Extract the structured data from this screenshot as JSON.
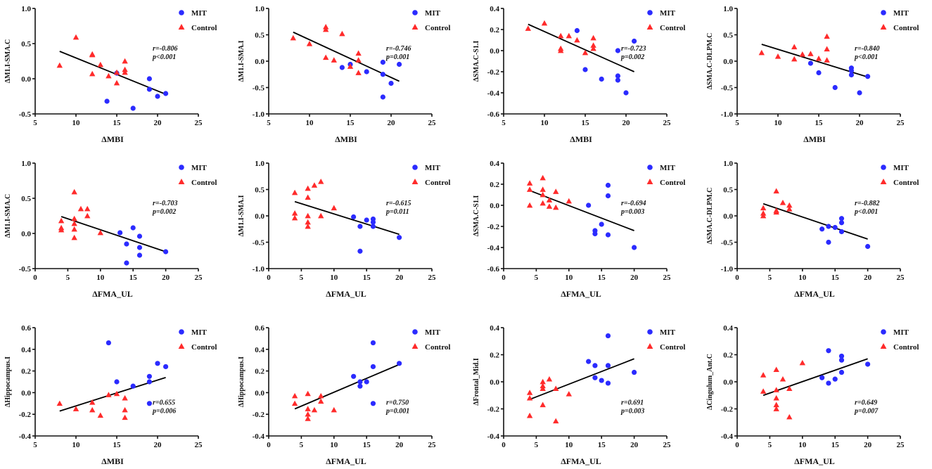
{
  "colors": {
    "MIT": "#2b2bff",
    "Control": "#ff2b2b",
    "axis": "#111111",
    "fit": "#000000"
  },
  "legend": [
    "MIT",
    "Control"
  ],
  "chart_data": [
    {
      "type": "scatter",
      "title": "",
      "xlabel": "ΔMBI",
      "ylabel": "ΔM1.I-SMA.C",
      "xlim": [
        5,
        25
      ],
      "xticks": [
        5,
        10,
        15,
        20,
        25
      ],
      "ylim": [
        -0.5,
        1.0
      ],
      "yticks": [
        -0.5,
        0.0,
        0.5,
        1.0
      ],
      "ytick_labels": [
        "-0.5",
        "0.0",
        "0.5",
        "1.0"
      ],
      "stats": {
        "r": "r=-0.806",
        "p": "p<0.001"
      },
      "fit_line": [
        [
          8,
          0.39
        ],
        [
          21,
          -0.22
        ]
      ],
      "series": [
        {
          "name": "MIT",
          "marker": "circle",
          "x": [
            13.8,
            15,
            17,
            19,
            19,
            20,
            21
          ],
          "y": [
            -0.32,
            0.08,
            -0.42,
            0.0,
            -0.15,
            -0.25,
            -0.21
          ]
        },
        {
          "name": "Control",
          "marker": "triangle",
          "x": [
            8,
            10,
            12,
            12,
            12,
            13,
            14,
            15,
            15,
            16,
            16,
            16
          ],
          "y": [
            0.19,
            0.59,
            0.35,
            0.34,
            0.07,
            0.2,
            0.04,
            0.09,
            -0.06,
            0.25,
            0.13,
            0.09
          ]
        }
      ]
    },
    {
      "type": "scatter",
      "title": "",
      "xlabel": "ΔMBI",
      "ylabel": "ΔM1.I-SMA.I",
      "xlim": [
        5,
        25
      ],
      "xticks": [
        5,
        10,
        15,
        20,
        25
      ],
      "ylim": [
        -1.0,
        1.0
      ],
      "yticks": [
        -1.0,
        -0.5,
        0.0,
        0.5,
        1.0
      ],
      "ytick_labels": [
        "-1.0",
        "-0.5",
        "0.0",
        "0.5",
        "1.0"
      ],
      "stats": {
        "r": "r=-0.746",
        "p": "p=0.001"
      },
      "fit_line": [
        [
          8,
          0.55
        ],
        [
          21,
          -0.38
        ]
      ],
      "series": [
        {
          "name": "MIT",
          "marker": "circle",
          "x": [
            14,
            15,
            17,
            19,
            19,
            19,
            20,
            21
          ],
          "y": [
            -0.12,
            -0.06,
            -0.2,
            -0.02,
            -0.25,
            -0.68,
            -0.42,
            -0.06
          ]
        },
        {
          "name": "Control",
          "marker": "triangle",
          "x": [
            8,
            10,
            12,
            12,
            12,
            13,
            14,
            15,
            16,
            16,
            16
          ],
          "y": [
            0.44,
            0.33,
            0.65,
            0.6,
            0.07,
            0.02,
            0.52,
            -0.1,
            0.15,
            0.02,
            -0.22
          ]
        }
      ]
    },
    {
      "type": "scatter",
      "title": "",
      "xlabel": "ΔMBI",
      "ylabel": "ΔSMA.C-S1.I",
      "xlim": [
        5,
        25
      ],
      "xticks": [
        5,
        10,
        15,
        20,
        25
      ],
      "ylim": [
        -0.6,
        0.4
      ],
      "yticks": [
        -0.6,
        -0.4,
        -0.2,
        0.0,
        0.2,
        0.4
      ],
      "ytick_labels": [
        "-0.6",
        "-0.4",
        "-0.2",
        "0.0",
        "0.2",
        "0.4"
      ],
      "stats": {
        "r": "r=-0.723",
        "p": "p=0.002"
      },
      "fit_line": [
        [
          8,
          0.25
        ],
        [
          21,
          -0.2
        ]
      ],
      "series": [
        {
          "name": "MIT",
          "marker": "circle",
          "x": [
            14,
            15,
            17,
            19,
            19,
            19,
            20,
            21
          ],
          "y": [
            0.19,
            -0.18,
            -0.27,
            0.0,
            -0.24,
            -0.28,
            -0.4,
            0.09
          ]
        },
        {
          "name": "Control",
          "marker": "triangle",
          "x": [
            8,
            10,
            12,
            12,
            12,
            13,
            14,
            15,
            16,
            16,
            16
          ],
          "y": [
            0.21,
            0.26,
            0.14,
            0.02,
            0.0,
            0.14,
            0.1,
            -0.02,
            0.12,
            0.05,
            0.02
          ]
        }
      ]
    },
    {
      "type": "scatter",
      "title": "",
      "xlabel": "ΔMBI",
      "ylabel": "ΔSMA.C-DLPM.C",
      "xlim": [
        5,
        25
      ],
      "xticks": [
        5,
        10,
        15,
        20,
        25
      ],
      "ylim": [
        -1.0,
        1.0
      ],
      "yticks": [
        -1.0,
        -0.5,
        0.0,
        0.5,
        1.0
      ],
      "ytick_labels": [
        "-1.0",
        "-0.5",
        "0.0",
        "0.5",
        "1.0"
      ],
      "stats": {
        "r": "r=-0.840",
        "p": "p<0.001"
      },
      "fit_line": [
        [
          8,
          0.32
        ],
        [
          21,
          -0.3
        ]
      ],
      "series": [
        {
          "name": "MIT",
          "marker": "circle",
          "x": [
            14,
            15,
            17,
            19,
            19,
            19,
            20,
            21
          ],
          "y": [
            -0.04,
            -0.22,
            -0.5,
            -0.13,
            -0.18,
            -0.26,
            -0.6,
            -0.29
          ]
        },
        {
          "name": "Control",
          "marker": "triangle",
          "x": [
            8,
            10,
            12,
            12,
            13,
            14,
            15,
            16,
            16,
            16
          ],
          "y": [
            0.16,
            0.09,
            0.27,
            0.04,
            0.13,
            0.14,
            0.05,
            0.47,
            0.23,
            0.02
          ]
        }
      ]
    },
    {
      "type": "scatter",
      "title": "",
      "xlabel": "ΔFMA_UL",
      "ylabel": "ΔM1.I-SMA.C",
      "xlim": [
        0,
        25
      ],
      "xticks": [
        0,
        5,
        10,
        15,
        20,
        25
      ],
      "ylim": [
        -0.5,
        1.0
      ],
      "yticks": [
        -0.5,
        0.0,
        0.5,
        1.0
      ],
      "ytick_labels": [
        "-0.5",
        "0.0",
        "0.5",
        "1.0"
      ],
      "stats": {
        "r": "r=-0.703",
        "p": "p=0.002"
      },
      "fit_line": [
        [
          4,
          0.24
        ],
        [
          20,
          -0.26
        ]
      ],
      "series": [
        {
          "name": "MIT",
          "marker": "circle",
          "x": [
            13,
            14,
            14,
            15,
            16,
            16,
            16,
            20
          ],
          "y": [
            0.01,
            -0.15,
            -0.42,
            0.08,
            -0.04,
            -0.2,
            -0.31,
            -0.26
          ]
        },
        {
          "name": "Control",
          "marker": "triangle",
          "x": [
            4,
            4,
            4,
            6,
            6,
            6,
            6,
            6,
            7,
            8,
            8,
            10
          ],
          "y": [
            0.18,
            0.08,
            0.05,
            0.59,
            0.21,
            0.14,
            0.06,
            -0.06,
            0.35,
            0.35,
            0.25,
            0.01
          ]
        }
      ]
    },
    {
      "type": "scatter",
      "title": "",
      "xlabel": "ΔFMA_UL",
      "ylabel": "ΔM1.I-SMA.I",
      "xlim": [
        0,
        25
      ],
      "xticks": [
        0,
        5,
        10,
        15,
        20,
        25
      ],
      "ylim": [
        -1.0,
        1.0
      ],
      "yticks": [
        -1.0,
        -0.5,
        0.0,
        0.5,
        1.0
      ],
      "ytick_labels": [
        "-1.0",
        "-0.5",
        "0.0",
        "0.5",
        "1.0"
      ],
      "stats": {
        "r": "r=-0.615",
        "p": "p=0.011"
      },
      "fit_line": [
        [
          4,
          0.27
        ],
        [
          20,
          -0.35
        ]
      ],
      "series": [
        {
          "name": "MIT",
          "marker": "circle",
          "x": [
            13,
            14,
            14,
            15,
            16,
            16,
            16,
            20
          ],
          "y": [
            -0.02,
            -0.2,
            -0.67,
            -0.08,
            -0.06,
            -0.12,
            -0.2,
            -0.41
          ]
        },
        {
          "name": "Control",
          "marker": "triangle",
          "x": [
            4,
            4,
            4,
            6,
            6,
            6,
            6,
            6,
            7,
            8,
            8,
            10
          ],
          "y": [
            0.44,
            0.05,
            -0.04,
            0.52,
            0.35,
            0.0,
            -0.12,
            -0.2,
            0.58,
            0.65,
            0.0,
            0.15
          ]
        }
      ]
    },
    {
      "type": "scatter",
      "title": "",
      "xlabel": "ΔFMA_UL",
      "ylabel": "ΔSMA.C-S1.I",
      "xlim": [
        0,
        25
      ],
      "xticks": [
        0,
        5,
        10,
        15,
        20,
        25
      ],
      "ylim": [
        -0.6,
        0.4
      ],
      "yticks": [
        -0.6,
        -0.4,
        -0.2,
        0.0,
        0.2,
        0.4
      ],
      "ytick_labels": [
        "-0.6",
        "-0.4",
        "-0.2",
        "0.0",
        "0.2",
        "0.4"
      ],
      "stats": {
        "r": "r=-0.694",
        "p": "p=0.003"
      },
      "fit_line": [
        [
          4,
          0.14
        ],
        [
          20,
          -0.24
        ]
      ],
      "series": [
        {
          "name": "MIT",
          "marker": "circle",
          "x": [
            13,
            14,
            14,
            15,
            16,
            16,
            16,
            20
          ],
          "y": [
            0.0,
            -0.24,
            -0.27,
            -0.18,
            0.19,
            0.09,
            -0.28,
            -0.4
          ]
        },
        {
          "name": "Control",
          "marker": "triangle",
          "x": [
            4,
            4,
            4,
            6,
            6,
            6,
            6,
            7,
            7,
            8,
            8,
            10
          ],
          "y": [
            0.21,
            0.15,
            0.0,
            0.26,
            0.15,
            0.1,
            0.02,
            0.05,
            -0.01,
            0.13,
            -0.02,
            0.04
          ]
        }
      ]
    },
    {
      "type": "scatter",
      "title": "",
      "xlabel": "ΔFMA_UL",
      "ylabel": "ΔSMA.C-DLPM.C",
      "xlim": [
        0,
        25
      ],
      "xticks": [
        0,
        5,
        10,
        15,
        20,
        25
      ],
      "ylim": [
        -1.0,
        1.0
      ],
      "yticks": [
        -1.0,
        -0.5,
        0.0,
        0.5,
        1.0
      ],
      "ytick_labels": [
        "-1.0",
        "-0.5",
        "0.0",
        "0.5",
        "1.0"
      ],
      "stats": {
        "r": "r=-0.882",
        "p": "p<0.001"
      },
      "fit_line": [
        [
          4,
          0.23
        ],
        [
          20,
          -0.44
        ]
      ],
      "series": [
        {
          "name": "MIT",
          "marker": "circle",
          "x": [
            13,
            14,
            14,
            15,
            16,
            16,
            16,
            20
          ],
          "y": [
            -0.25,
            -0.2,
            -0.5,
            -0.22,
            -0.05,
            -0.13,
            -0.3,
            -0.58
          ]
        },
        {
          "name": "Control",
          "marker": "triangle",
          "x": [
            4,
            4,
            4,
            6,
            6,
            6,
            7,
            8,
            8
          ],
          "y": [
            0.15,
            0.05,
            0.0,
            0.47,
            0.1,
            0.07,
            0.25,
            0.2,
            0.13
          ]
        }
      ]
    },
    {
      "type": "scatter",
      "title": "",
      "xlabel": "ΔMBI",
      "ylabel": "ΔHippocampus.I",
      "xlim": [
        5,
        25
      ],
      "xticks": [
        5,
        10,
        15,
        20,
        25
      ],
      "ylim": [
        -0.4,
        0.6
      ],
      "yticks": [
        -0.4,
        -0.2,
        0.0,
        0.2,
        0.4,
        0.6
      ],
      "ytick_labels": [
        "-0.4",
        "-0.2",
        "0.0",
        "0.2",
        "0.4",
        "0.6"
      ],
      "stats": {
        "r": "r=0.655",
        "p": "p=0.006"
      },
      "fit_line": [
        [
          8,
          -0.17
        ],
        [
          21,
          0.14
        ]
      ],
      "series": [
        {
          "name": "MIT",
          "marker": "circle",
          "x": [
            14,
            15,
            17,
            19,
            19,
            19,
            20,
            21
          ],
          "y": [
            0.46,
            0.1,
            0.06,
            0.15,
            0.1,
            -0.1,
            0.27,
            0.24
          ]
        },
        {
          "name": "Control",
          "marker": "triangle",
          "x": [
            8,
            10,
            12,
            12,
            13,
            14,
            15,
            16,
            16,
            16
          ],
          "y": [
            -0.1,
            -0.15,
            -0.09,
            -0.16,
            -0.21,
            -0.02,
            -0.01,
            -0.05,
            -0.16,
            -0.23
          ]
        }
      ]
    },
    {
      "type": "scatter",
      "title": "",
      "xlabel": "ΔFMA_UL",
      "ylabel": "ΔHippocampus.I",
      "xlim": [
        0,
        25
      ],
      "xticks": [
        0,
        5,
        10,
        15,
        20,
        25
      ],
      "ylim": [
        -0.4,
        0.6
      ],
      "yticks": [
        -0.4,
        -0.2,
        0.0,
        0.2,
        0.4,
        0.6
      ],
      "ytick_labels": [
        "-0.4",
        "-0.2",
        "0.0",
        "0.2",
        "0.4",
        "0.6"
      ],
      "stats": {
        "r": "r=0.750",
        "p": "p=0.001"
      },
      "fit_line": [
        [
          4,
          -0.15
        ],
        [
          20,
          0.26
        ]
      ],
      "series": [
        {
          "name": "MIT",
          "marker": "circle",
          "x": [
            13,
            14,
            14,
            15,
            16,
            16,
            16,
            20
          ],
          "y": [
            0.15,
            0.1,
            0.06,
            0.1,
            0.46,
            0.24,
            -0.1,
            0.27
          ]
        },
        {
          "name": "Control",
          "marker": "triangle",
          "x": [
            4,
            4,
            6,
            6,
            6,
            6,
            7,
            8,
            8,
            10
          ],
          "y": [
            -0.03,
            -0.1,
            -0.01,
            -0.2,
            -0.24,
            -0.15,
            -0.16,
            -0.03,
            -0.08,
            -0.16
          ]
        }
      ]
    },
    {
      "type": "scatter",
      "title": "",
      "xlabel": "ΔFMA_UL",
      "ylabel": "ΔFrontal_Mid.I",
      "xlim": [
        0,
        25
      ],
      "xticks": [
        0,
        5,
        10,
        15,
        20,
        25
      ],
      "ylim": [
        -0.4,
        0.4
      ],
      "yticks": [
        -0.4,
        -0.2,
        0.0,
        0.2,
        0.4
      ],
      "ytick_labels": [
        "-0.4",
        "-0.2",
        "0.0",
        "0.2",
        "0.4"
      ],
      "stats": {
        "r": "r=0.691",
        "p": "p=0.003"
      },
      "fit_line": [
        [
          4,
          -0.13
        ],
        [
          20,
          0.17
        ]
      ],
      "series": [
        {
          "name": "MIT",
          "marker": "circle",
          "x": [
            13,
            14,
            14,
            15,
            16,
            16,
            16,
            20
          ],
          "y": [
            0.15,
            0.12,
            0.03,
            0.01,
            0.34,
            0.12,
            -0.01,
            0.07
          ]
        },
        {
          "name": "Control",
          "marker": "triangle",
          "x": [
            4,
            4,
            4,
            6,
            6,
            6,
            6,
            7,
            8,
            8,
            10
          ],
          "y": [
            -0.08,
            -0.12,
            -0.25,
            0.0,
            -0.03,
            -0.05,
            -0.17,
            0.02,
            -0.05,
            -0.29,
            -0.09
          ]
        }
      ]
    },
    {
      "type": "scatter",
      "title": "",
      "xlabel": "ΔFMA_UL",
      "ylabel": "ΔCingulum_Ant.C",
      "xlim": [
        0,
        25
      ],
      "xticks": [
        0,
        5,
        10,
        15,
        20,
        25
      ],
      "ylim": [
        -0.4,
        0.4
      ],
      "yticks": [
        -0.4,
        -0.2,
        0.0,
        0.2,
        0.4
      ],
      "ytick_labels": [
        "-0.4",
        "-0.2",
        "0.0",
        "0.2",
        "0.4"
      ],
      "stats": {
        "r": "r=0.649",
        "p": "p=0.007"
      },
      "fit_line": [
        [
          4,
          -0.1
        ],
        [
          20,
          0.17
        ]
      ],
      "series": [
        {
          "name": "MIT",
          "marker": "circle",
          "x": [
            13,
            14,
            14,
            15,
            16,
            16,
            16,
            20
          ],
          "y": [
            0.03,
            0.23,
            -0.01,
            0.02,
            0.19,
            0.16,
            0.07,
            0.13
          ]
        },
        {
          "name": "Control",
          "marker": "triangle",
          "x": [
            4,
            4,
            6,
            6,
            6,
            6,
            6,
            7,
            8,
            8,
            10
          ],
          "y": [
            0.05,
            -0.07,
            0.09,
            -0.06,
            -0.12,
            -0.17,
            -0.2,
            0.02,
            -0.05,
            -0.26,
            0.14
          ]
        }
      ]
    }
  ]
}
